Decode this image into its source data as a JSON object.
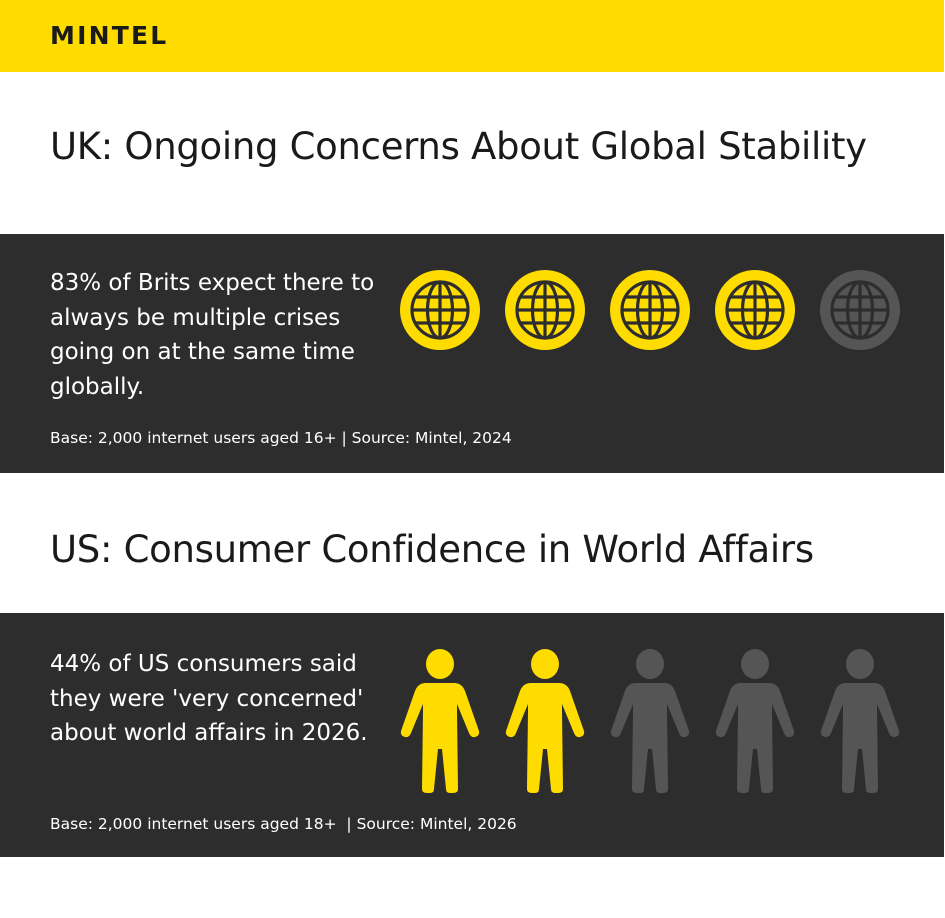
{
  "header": {
    "logo": "MINTEL",
    "background_color": "#FFDC00"
  },
  "sections": [
    {
      "title": "UK: Ongoing Concerns About Global Stability",
      "stat_text": "83% of Brits expect there to always be multiple crises going on at the same time globally.",
      "base_text": "Base: 2,000 internet users aged 16+ | Source: Mintel, 2024",
      "icon": "globe-icon",
      "icons_total": 5,
      "icons_highlighted": 4,
      "highlight_color": "#FFDC00",
      "dim_color": "#555555"
    },
    {
      "title": "US: Consumer Confidence in World Affairs",
      "stat_text": "44% of US consumers said they were 'very concerned' about world affairs in 2026.",
      "base_text": "Base: 2,000 internet users aged 18+  | Source: Mintel, 2026",
      "icon": "person-icon",
      "icons_total": 5,
      "icons_highlighted": 2,
      "highlight_color": "#FFDC00",
      "dim_color": "#555555"
    }
  ],
  "panel_color": "#2d2d2d"
}
